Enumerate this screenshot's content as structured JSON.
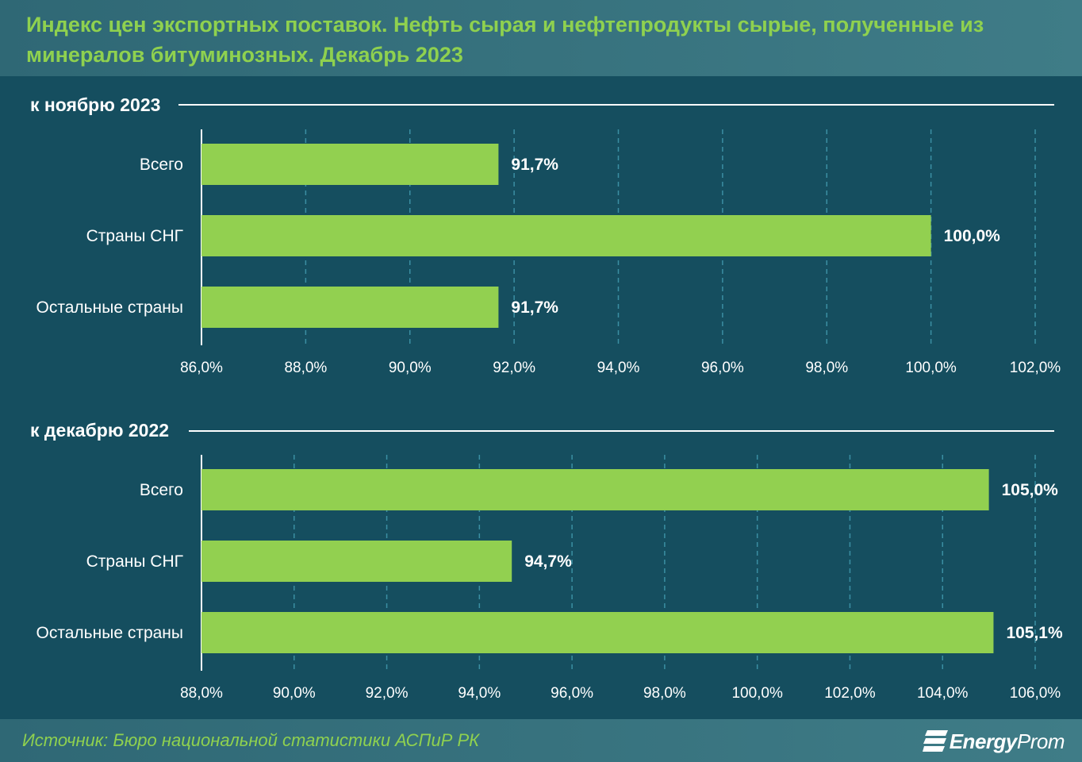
{
  "title": "Индекс цен экспортных поставок. Нефть сырая и нефтепродукты сырые, полученные из минералов битуминозных. Декабрь 2023",
  "colors": {
    "bar": "#92d050",
    "background": "#154e5f",
    "header": "#3a7480",
    "title": "#8fd14f",
    "grid": "#3b8fa3"
  },
  "chart_data": [
    {
      "type": "bar",
      "orientation": "horizontal",
      "title": "к ноябрю 2023",
      "categories": [
        "Всего",
        "Страны СНГ",
        "Остальные страны"
      ],
      "values": [
        91.7,
        100.0,
        91.7
      ],
      "value_labels": [
        "91,7%",
        "100,0%",
        "91,7%"
      ],
      "xlim": [
        86,
        102
      ],
      "ticks": [
        86,
        88,
        90,
        92,
        94,
        96,
        98,
        100,
        102
      ],
      "tick_labels": [
        "86,0%",
        "88,0%",
        "90,0%",
        "92,0%",
        "94,0%",
        "96,0%",
        "98,0%",
        "100,0%",
        "102,0%"
      ],
      "grid": true
    },
    {
      "type": "bar",
      "orientation": "horizontal",
      "title": "к декабрю 2022",
      "categories": [
        "Всего",
        "Страны СНГ",
        "Остальные страны"
      ],
      "values": [
        105.0,
        94.7,
        105.1
      ],
      "value_labels": [
        "105,0%",
        "94,7%",
        "105,1%"
      ],
      "xlim": [
        88,
        106
      ],
      "ticks": [
        88,
        90,
        92,
        94,
        96,
        98,
        100,
        102,
        104,
        106
      ],
      "tick_labels": [
        "88,0%",
        "90,0%",
        "92,0%",
        "94,0%",
        "96,0%",
        "98,0%",
        "100,0%",
        "102,0%",
        "104,0%",
        "106,0%"
      ],
      "grid": true
    }
  ],
  "footer": {
    "source": "Источник: Бюро национальной статистики АСПиР РК",
    "logo_bold": "Energy",
    "logo_light": "Prom",
    "logo_icon": "energyprom-flag-icon"
  }
}
